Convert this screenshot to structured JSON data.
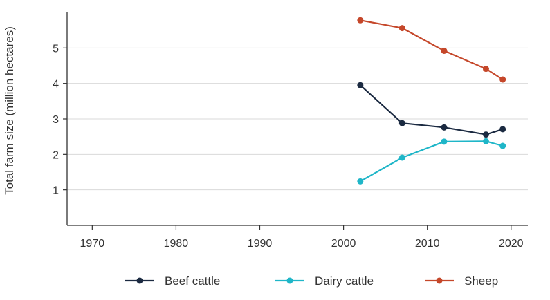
{
  "chart_data": {
    "type": "line",
    "title": "",
    "xlabel": "",
    "ylabel": "Total farm size (million hectares)",
    "xlim": [
      1967,
      2022
    ],
    "ylim": [
      0,
      6
    ],
    "xticks": [
      1970,
      1980,
      1990,
      2000,
      2010,
      2020
    ],
    "yticks": [
      1,
      2,
      3,
      4,
      5
    ],
    "grid": "horizontal",
    "legend_position": "bottom",
    "series": [
      {
        "name": "Beef cattle",
        "color": "#1b2a41",
        "x": [
          2002,
          2007,
          2012,
          2017,
          2019
        ],
        "values": [
          3.95,
          2.88,
          2.76,
          2.56,
          2.71
        ]
      },
      {
        "name": "Dairy cattle",
        "color": "#1fb6c8",
        "x": [
          2002,
          2007,
          2012,
          2017,
          2019
        ],
        "values": [
          1.24,
          1.91,
          2.36,
          2.37,
          2.24
        ]
      },
      {
        "name": "Sheep",
        "color": "#c5472a",
        "x": [
          2002,
          2007,
          2012,
          2017,
          2019
        ],
        "values": [
          5.78,
          5.56,
          4.92,
          4.41,
          4.11
        ]
      }
    ]
  }
}
